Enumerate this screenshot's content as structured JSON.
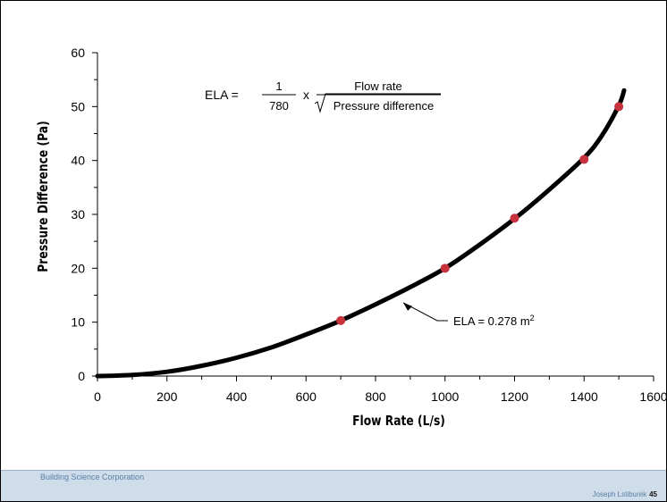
{
  "chart_data": {
    "type": "line",
    "xlabel": "Flow Rate (L/s)",
    "ylabel": "Pressure Difference (Pa)",
    "xlim": [
      0,
      1600
    ],
    "ylim": [
      0,
      60
    ],
    "x_ticks": [
      "0",
      "200",
      "400",
      "600",
      "800",
      "1000",
      "1200",
      "1400",
      "1600"
    ],
    "y_ticks": [
      "0",
      "10",
      "20",
      "30",
      "40",
      "50",
      "60"
    ],
    "x_tick_values": [
      0,
      200,
      400,
      600,
      800,
      1000,
      1200,
      1400,
      1600
    ],
    "y_tick_values": [
      0,
      10,
      20,
      30,
      40,
      50,
      60
    ],
    "grid": false,
    "series": [
      {
        "color": "#000000",
        "x": [
          0,
          100,
          200,
          300,
          400,
          500,
          600,
          700,
          800,
          900,
          1000,
          1100,
          1200,
          1300,
          1400,
          1450,
          1500,
          1515
        ],
        "y": [
          0,
          0.2,
          0.8,
          1.9,
          3.4,
          5.3,
          7.7,
          10.3,
          13.3,
          16.5,
          20.0,
          24.4,
          29.2,
          34.6,
          40.5,
          44.5,
          50.2,
          53.0
        ]
      }
    ],
    "markers": {
      "color": "#c8323c",
      "x": [
        700,
        1000,
        1200,
        1400,
        1500
      ],
      "y": [
        10.3,
        20.0,
        29.3,
        40.2,
        50.0
      ]
    },
    "formula": {
      "lhs": "ELA =",
      "numerator": "1",
      "denominator": "780",
      "times": "x",
      "flow_label": "Flow rate",
      "pressure_label": "Pressure difference"
    },
    "annotation": {
      "text": "ELA = 0.278 m",
      "sup": "2",
      "target_x": 880,
      "target_y": 13.6
    }
  },
  "footer": {
    "left": "Building Science Corporation",
    "right": "Joseph Lstiburek",
    "page": "45"
  }
}
